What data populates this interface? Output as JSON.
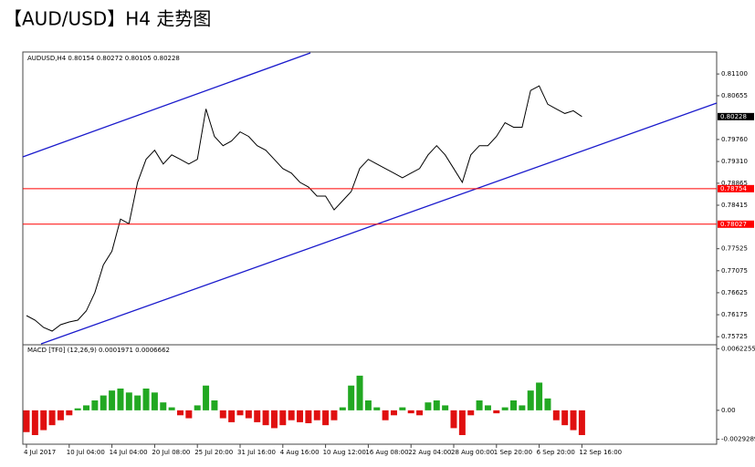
{
  "chart_data": [
    {
      "type": "line",
      "title": "【AUD/USD】H4 走势图",
      "label": "AUDUSD,H4  0.80154 0.80272 0.80105 0.80228",
      "color": "#000000",
      "categories": [
        "4 Jul 2017",
        null,
        null,
        null,
        null,
        "10 Jul 04:00",
        null,
        null,
        null,
        null,
        "14 Jul 04:00",
        null,
        null,
        null,
        null,
        "20 Jul 08:00",
        null,
        null,
        null,
        null,
        "25 Jul 20:00",
        null,
        null,
        null,
        null,
        "31 Jul 16:00",
        null,
        null,
        null,
        null,
        "4 Aug 16:00",
        null,
        null,
        null,
        null,
        "10 Aug 12:00",
        null,
        null,
        null,
        null,
        "16 Aug 08:00",
        null,
        null,
        null,
        null,
        "22 Aug 04:00",
        null,
        null,
        null,
        null,
        "28 Aug 00:00",
        null,
        null,
        null,
        null,
        "1 Sep 20:00",
        null,
        null,
        null,
        null,
        "6 Sep 20:00",
        null,
        null,
        null,
        null,
        "12 Sep 16:00"
      ],
      "values": [
        0.76158,
        0.76064,
        0.75914,
        0.75839,
        0.7597,
        0.76027,
        0.76064,
        0.76252,
        0.76628,
        0.77192,
        0.77474,
        0.78131,
        0.78037,
        0.78883,
        0.79353,
        0.7954,
        0.79259,
        0.79446,
        0.79353,
        0.79259,
        0.79353,
        0.80386,
        0.79822,
        0.79634,
        0.79728,
        0.79916,
        0.79822,
        0.79634,
        0.7954,
        0.79353,
        0.79165,
        0.79071,
        0.78883,
        0.78789,
        0.78601,
        0.78601,
        0.78319,
        0.78507,
        0.78695,
        0.79165,
        0.79353,
        0.79259,
        0.79165,
        0.79071,
        0.78977,
        0.79071,
        0.79165,
        0.79446,
        0.79634,
        0.79446,
        0.79165,
        0.78883,
        0.79446,
        0.79634,
        0.79634,
        0.79822,
        0.80104,
        0.8001,
        0.8001,
        0.80762,
        0.80856,
        0.8048,
        0.80386,
        0.80292,
        0.80348,
        0.80228
      ],
      "ylim": [
        0.7556,
        0.8155
      ],
      "yticks": [
        {
          "value": 0.811,
          "label": "0.81100"
        },
        {
          "value": 0.80655,
          "label": "0.80655"
        },
        {
          "value": 0.7976,
          "label": "0.79760"
        },
        {
          "value": 0.7931,
          "label": "0.79310"
        },
        {
          "value": 0.78865,
          "label": "0.78865"
        },
        {
          "value": 0.78415,
          "label": "0.78415"
        },
        {
          "value": 0.77525,
          "label": "0.77525"
        },
        {
          "value": 0.77075,
          "label": "0.77075"
        },
        {
          "value": 0.76625,
          "label": "0.76625"
        },
        {
          "value": 0.76175,
          "label": "0.76175"
        },
        {
          "value": 0.75725,
          "label": "0.75725"
        }
      ],
      "last_price": 0.80228,
      "price_lines": [
        {
          "value": 0.78754,
          "color": "#ff0000"
        },
        {
          "value": 0.78027,
          "color": "#ff0000"
        }
      ]
    },
    {
      "type": "bar",
      "label": "MACD [TF0] (12,26,9) 0.0001971 0.0006662",
      "positive_color": "#22a822",
      "negative_color": "#e01010",
      "values": [
        -0.0022,
        -0.0025,
        -0.002,
        -0.0015,
        -0.001,
        -0.0005,
        0.0002,
        0.0005,
        0.001,
        0.0015,
        0.002,
        0.0022,
        0.0018,
        0.0015,
        0.0022,
        0.0018,
        0.0008,
        0.0003,
        -0.0005,
        -0.0008,
        0.0005,
        0.0025,
        0.001,
        -0.0008,
        -0.0012,
        -0.0005,
        -0.0008,
        -0.0012,
        -0.0015,
        -0.0018,
        -0.0015,
        -0.001,
        -0.0012,
        -0.0013,
        -0.001,
        -0.0015,
        -0.001,
        0.0003,
        0.0025,
        0.0035,
        0.001,
        0.0003,
        -0.001,
        -0.0005,
        0.0003,
        -0.0003,
        -0.0005,
        0.0008,
        0.001,
        0.0005,
        -0.0018,
        -0.0025,
        -0.0005,
        0.001,
        0.0005,
        -0.0003,
        0.0003,
        0.001,
        0.0005,
        0.002,
        0.0028,
        0.0012,
        -0.001,
        -0.0015,
        -0.002,
        -0.0025
      ],
      "ylim": [
        -0.00342,
        0.00662
      ],
      "yticks": [
        0.0062255,
        {
          "value": 0,
          "label": "0.00"
        },
        -0.0029289
      ]
    }
  ]
}
